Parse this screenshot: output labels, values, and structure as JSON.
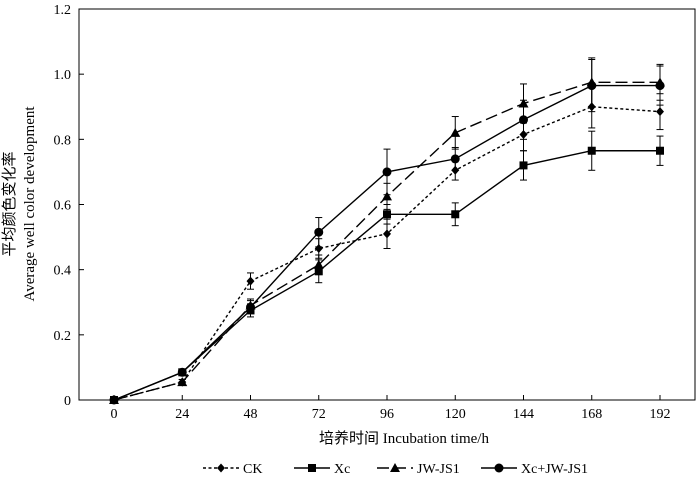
{
  "chart_data": {
    "type": "line",
    "xlabel": "培养时间  Incubation time/h",
    "ylabel_cn": "平均颜色变化率",
    "ylabel_en": "Average well color development",
    "x": [
      0,
      24,
      48,
      72,
      96,
      120,
      144,
      168,
      192
    ],
    "x_tick_labels": [
      "0",
      "24",
      "48",
      "72",
      "96",
      "120",
      "144",
      "168",
      "192"
    ],
    "xlim": [
      0,
      192
    ],
    "ylim": [
      0,
      1.2
    ],
    "y_ticks": [
      0,
      0.2,
      0.4,
      0.6,
      0.8,
      1.0,
      1.2
    ],
    "y_tick_labels": [
      "0",
      "0.2",
      "0.4",
      "0.6",
      "0.8",
      "1.0",
      "1.2"
    ],
    "grid": false,
    "legend_position": "bottom",
    "series": [
      {
        "name": "CK",
        "marker": "diamond",
        "dash": "dotted",
        "values": [
          0.0,
          0.055,
          0.365,
          0.465,
          0.51,
          0.705,
          0.815,
          0.9,
          0.885
        ],
        "errors": [
          0.0,
          0.008,
          0.025,
          0.03,
          0.045,
          0.03,
          0.05,
          0.065,
          0.055
        ]
      },
      {
        "name": "Xc",
        "marker": "square",
        "dash": "solid",
        "values": [
          0.0,
          0.085,
          0.275,
          0.395,
          0.57,
          0.57,
          0.72,
          0.765,
          0.765
        ],
        "errors": [
          0.0,
          0.008,
          0.02,
          0.035,
          0.03,
          0.035,
          0.045,
          0.06,
          0.045
        ]
      },
      {
        "name": "JW-JS1",
        "marker": "triangle",
        "dash": "long-dash",
        "values": [
          0.0,
          0.055,
          0.29,
          0.415,
          0.625,
          0.82,
          0.91,
          0.975,
          0.975
        ],
        "errors": [
          0.0,
          0.008,
          0.02,
          0.03,
          0.04,
          0.05,
          0.06,
          0.075,
          0.055
        ]
      },
      {
        "name": "Xc+JW-JS1",
        "marker": "circle",
        "dash": "solid",
        "values": [
          0.0,
          0.085,
          0.285,
          0.515,
          0.7,
          0.74,
          0.86,
          0.965,
          0.965
        ],
        "errors": [
          0.0,
          0.008,
          0.02,
          0.045,
          0.07,
          0.035,
          0.06,
          0.08,
          0.06
        ]
      }
    ]
  }
}
